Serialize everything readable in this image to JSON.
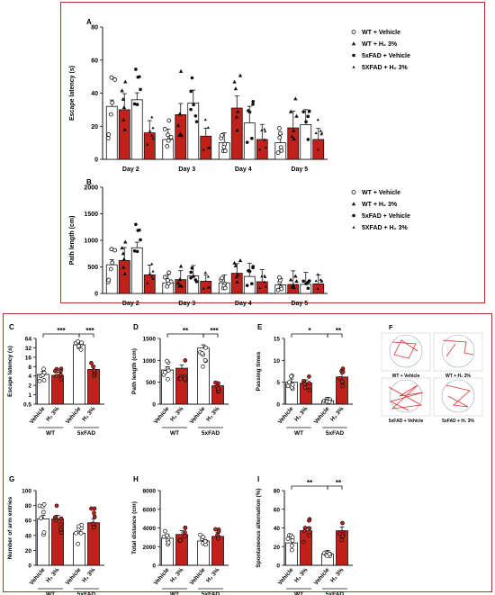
{
  "colors": {
    "red": "#c0211a",
    "frame": "#b0302a",
    "white": "#ffffff",
    "black": "#111111",
    "pink": "#f3c5d8"
  },
  "panelA": {
    "letter": "A",
    "ylabel": "Escape latency (s)",
    "ylim": [
      0,
      80
    ],
    "yticks": [
      0,
      20,
      40,
      60,
      80
    ],
    "days": [
      "Day 2",
      "Day 3",
      "Day 4",
      "Day 5"
    ],
    "legend": [
      "WT + Vehicle",
      "WT + H₂ 3%",
      "5xFAD + Vehicle",
      "5XFAD + H₂ 3%"
    ]
  },
  "panelB": {
    "letter": "B",
    "ylabel": "Path length (cm)",
    "ylim": [
      0,
      2000
    ],
    "yticks": [
      0,
      500,
      1000,
      1500,
      2000
    ],
    "days": [
      "Day 2",
      "Day 3",
      "Day 4",
      "Day 5"
    ],
    "legend": [
      "WT + Vehicle",
      "WT + H₂ 3%",
      "5xFAD + Vehicle",
      "5XFAD + H₂ 3%"
    ]
  },
  "panels": [
    {
      "letter": "C",
      "ylabel": "Escape latency (s)",
      "ytick_labels": [
        "0.5",
        "1",
        "2",
        "4",
        "8",
        "16",
        "32",
        "64"
      ],
      "sig": [
        "***",
        "***"
      ]
    },
    {
      "letter": "D",
      "ylabel": "Path length (cm)",
      "ytick_labels": [
        "0",
        "500",
        "1000",
        "1500"
      ],
      "sig": [
        "**",
        "***"
      ]
    },
    {
      "letter": "E",
      "ylabel": "Passing times",
      "ytick_labels": [
        "0",
        "5",
        "10",
        "15"
      ],
      "sig": [
        "*",
        "**"
      ]
    },
    {
      "letter": "G",
      "ylabel": "Number of arm entries",
      "ytick_labels": [
        "0",
        "20",
        "40",
        "60",
        "80",
        "100"
      ],
      "sig": []
    },
    {
      "letter": "H",
      "ylabel": "Total distance (cm)",
      "ytick_labels": [
        "0",
        "2000",
        "4000",
        "6000",
        "8000"
      ],
      "sig": []
    },
    {
      "letter": "I",
      "ylabel": "Spontaneous alternation (%)",
      "ytick_labels": [
        "0",
        "20",
        "40",
        "60",
        "80"
      ],
      "sig": [
        "**",
        "**"
      ]
    }
  ],
  "group_labels": {
    "vehicle": "Vehicle",
    "h2": "H₂ 3%",
    "wt": "WT",
    "fad": "5xFAD"
  },
  "panelF": {
    "letter": "F",
    "labels": [
      "WT + Vehicle",
      "WT + H₂ 3%",
      "5xFAD + Vehicle",
      "5xFAD + H₂ 3%"
    ]
  },
  "chart_data": [
    {
      "type": "bar",
      "panel": "A",
      "categories": [
        "Day 2",
        "Day 3",
        "Day 4",
        "Day 5"
      ],
      "ylabel": "Escape latency (s)",
      "ylim": [
        0,
        80
      ],
      "series": [
        {
          "name": "WT + Vehicle",
          "values": [
            32,
            12,
            10,
            10
          ]
        },
        {
          "name": "WT + H₂ 3%",
          "values": [
            30,
            27,
            31,
            19
          ]
        },
        {
          "name": "5xFAD + Vehicle",
          "values": [
            36,
            34,
            22,
            21
          ]
        },
        {
          "name": "5XFAD + H₂ 3%",
          "values": [
            16,
            14,
            12,
            12
          ]
        }
      ]
    },
    {
      "type": "bar",
      "panel": "B",
      "categories": [
        "Day 2",
        "Day 3",
        "Day 4",
        "Day 5"
      ],
      "ylabel": "Path length (cm)",
      "ylim": [
        0,
        2000
      ],
      "series": [
        {
          "name": "WT + Vehicle",
          "values": [
            540,
            200,
            200,
            160
          ]
        },
        {
          "name": "WT + H₂ 3%",
          "values": [
            620,
            260,
            380,
            170
          ]
        },
        {
          "name": "5xFAD + Vehicle",
          "values": [
            860,
            330,
            320,
            170
          ]
        },
        {
          "name": "5XFAD + H₂ 3%",
          "values": [
            350,
            230,
            220,
            180
          ]
        }
      ]
    },
    {
      "type": "bar",
      "panel": "C",
      "ylabel": "Escape latency (s)",
      "scale": "log2",
      "categories": [
        "WT Vehicle",
        "WT H₂ 3%",
        "5xFAD Vehicle",
        "5xFAD H₂ 3%"
      ],
      "values": [
        4.5,
        4.2,
        40,
        6.5
      ]
    },
    {
      "type": "bar",
      "panel": "D",
      "ylabel": "Path length (cm)",
      "ylim": [
        0,
        1500
      ],
      "categories": [
        "WT Vehicle",
        "WT H₂ 3%",
        "5xFAD Vehicle",
        "5xFAD H₂ 3%"
      ],
      "values": [
        780,
        820,
        1280,
        420
      ]
    },
    {
      "type": "bar",
      "panel": "E",
      "ylabel": "Passing times",
      "ylim": [
        0,
        15
      ],
      "categories": [
        "WT Vehicle",
        "WT H₂ 3%",
        "5xFAD Vehicle",
        "5xFAD H₂ 3%"
      ],
      "values": [
        5,
        4.8,
        0.8,
        6.2
      ]
    },
    {
      "type": "bar",
      "panel": "G",
      "ylabel": "Number of arm entries",
      "ylim": [
        0,
        100
      ],
      "categories": [
        "WT Vehicle",
        "WT H₂ 3%",
        "5xFAD Vehicle",
        "5xFAD H₂ 3%"
      ],
      "values": [
        62,
        62,
        43,
        57
      ]
    },
    {
      "type": "bar",
      "panel": "H",
      "ylabel": "Total distance (cm)",
      "ylim": [
        0,
        8000
      ],
      "categories": [
        "WT Vehicle",
        "WT H₂ 3%",
        "5xFAD Vehicle",
        "5xFAD H₂ 3%"
      ],
      "values": [
        2900,
        3300,
        2600,
        3100
      ]
    },
    {
      "type": "bar",
      "panel": "I",
      "ylabel": "Spontaneous alternation (%)",
      "ylim": [
        0,
        80
      ],
      "categories": [
        "WT Vehicle",
        "WT H₂ 3%",
        "5xFAD Vehicle",
        "5xFAD H₂ 3%"
      ],
      "values": [
        24,
        37,
        12,
        37
      ]
    }
  ]
}
